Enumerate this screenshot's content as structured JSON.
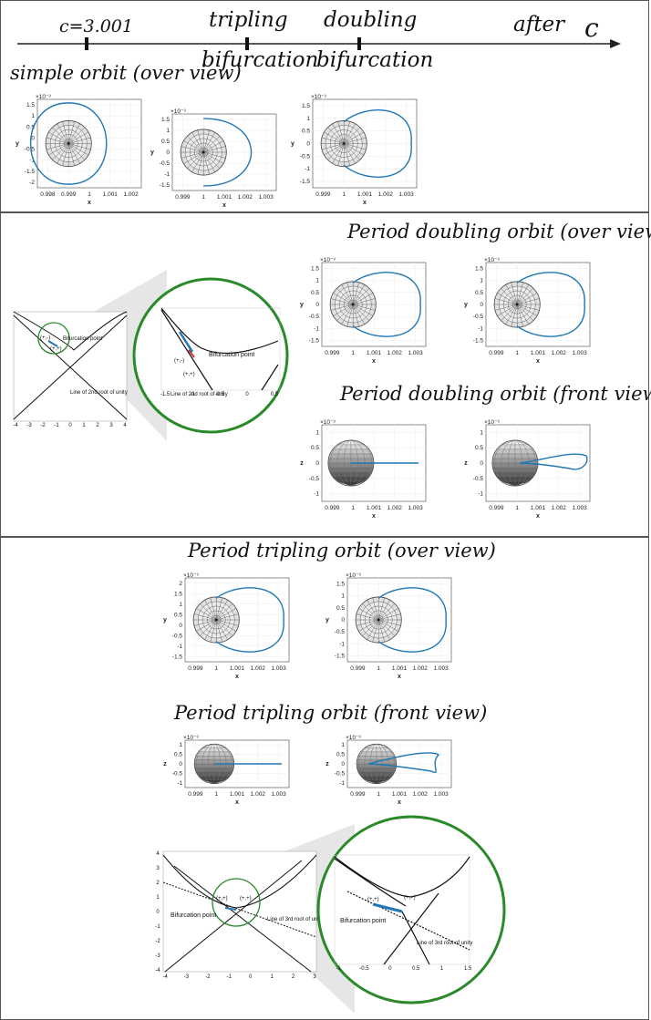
{
  "timeline": {
    "c_value": "c=3.001",
    "tripling_1": "tripling",
    "tripling_2": "bifurcation",
    "doubling_1": "doubling",
    "doubling_2": "bifurcation",
    "after": "after",
    "axis_symbol": "c"
  },
  "titles": {
    "simple": "simple orbit (over view)",
    "pd_over": "Period doubling orbit (over view)",
    "pd_front": "Period doubling orbit (front view)",
    "pt_over": "Period tripling orbit (over view)",
    "pt_front": "Period tripling orbit (front view)"
  },
  "axis": {
    "x": "x",
    "y": "y",
    "z": "z",
    "exp": "×10⁻³"
  },
  "plots": {
    "simple1": {
      "xt": [
        "0.998",
        "0.999",
        "1",
        "1.001",
        "1.002"
      ],
      "yt": [
        "1.5",
        "1",
        "0.5",
        "0",
        "-0.5",
        "-1",
        "-1.5",
        "-2"
      ]
    },
    "simple2": {
      "xt": [
        "0.999",
        "1",
        "1.001",
        "1.002",
        "1.003"
      ],
      "yt": [
        "1.5",
        "1",
        "0.5",
        "0",
        "-0.5",
        "-1",
        "-1.5"
      ]
    },
    "simple3": {
      "xt": [
        "0.999",
        "1",
        "1.001",
        "1.002",
        "1.003"
      ],
      "yt": [
        "1.5",
        "1",
        "0.5",
        "0",
        "-0.5",
        "-1",
        "-1.5"
      ]
    },
    "pdo1": {
      "xt": [
        "0.999",
        "1",
        "1.001",
        "1.002",
        "1.003"
      ],
      "yt": [
        "1.5",
        "1",
        "0.5",
        "0",
        "-0.5",
        "-1",
        "-1.5"
      ]
    },
    "pdo2": {
      "xt": [
        "0.999",
        "1",
        "1.001",
        "1.002",
        "1.003"
      ],
      "yt": [
        "1.5",
        "1",
        "0.5",
        "0",
        "-0.5",
        "-1",
        "-1.5"
      ]
    },
    "pdf1": {
      "xt": [
        "0.999",
        "1",
        "1.001",
        "1.002",
        "1.003"
      ],
      "yt": [
        "1",
        "0.5",
        "0",
        "-0.5",
        "-1"
      ]
    },
    "pdf2": {
      "xt": [
        "0.999",
        "1",
        "1.001",
        "1.002",
        "1.003"
      ],
      "yt": [
        "1",
        "0.5",
        "0",
        "-0.5",
        "-1"
      ]
    },
    "pto1": {
      "xt": [
        "0.999",
        "1",
        "1.001",
        "1.002",
        "1.003"
      ],
      "yt": [
        "2",
        "1.5",
        "1",
        "0.5",
        "0",
        "-0.5",
        "-1",
        "-1.5"
      ]
    },
    "pto2": {
      "xt": [
        "0.999",
        "1",
        "1.001",
        "1.002",
        "1.003"
      ],
      "yt": [
        "1.5",
        "1",
        "0.5",
        "0",
        "-0.5",
        "-1",
        "-1.5"
      ]
    },
    "ptf1": {
      "xt": [
        "0.999",
        "1",
        "1.001",
        "1.002",
        "1.003"
      ],
      "yt": [
        "1",
        "0.5",
        "0",
        "-0.5",
        "-1"
      ]
    },
    "ptf2": {
      "xt": [
        "0.999",
        "1",
        "1.001",
        "1.002",
        "1.003"
      ],
      "yt": [
        "1",
        "0.5",
        "0",
        "-0.5",
        "-1"
      ]
    }
  },
  "bif2": {
    "point": "Bifurcation point",
    "pm": "(+,-)",
    "pp": "(+,+)",
    "line": "Line of 2nd root of unity",
    "small_xt": [
      "-4",
      "-3",
      "-2",
      "-1",
      "0",
      "1",
      "2",
      "3",
      "4"
    ],
    "zoom_xt": [
      "-1.5",
      "-1",
      "-0.5",
      "0",
      "0.5"
    ]
  },
  "bif3": {
    "point": "Bifurcation point",
    "pp": "(+,+)",
    "line": "Line of 3rd root of unity",
    "small_xt": [
      "-4",
      "-3",
      "-2",
      "-1",
      "0",
      "1",
      "2",
      "3"
    ],
    "small_yt": [
      "4",
      "3",
      "2",
      "1",
      "0",
      "-1",
      "-2",
      "-3",
      "-4"
    ],
    "zoom_xt": [
      "-1",
      "-0.5",
      "0",
      "0.5",
      "1",
      "1.5"
    ]
  },
  "colors": {
    "orbit": "#1f77b4",
    "circle": "#2a8a2a",
    "marker": "#c0392b"
  }
}
